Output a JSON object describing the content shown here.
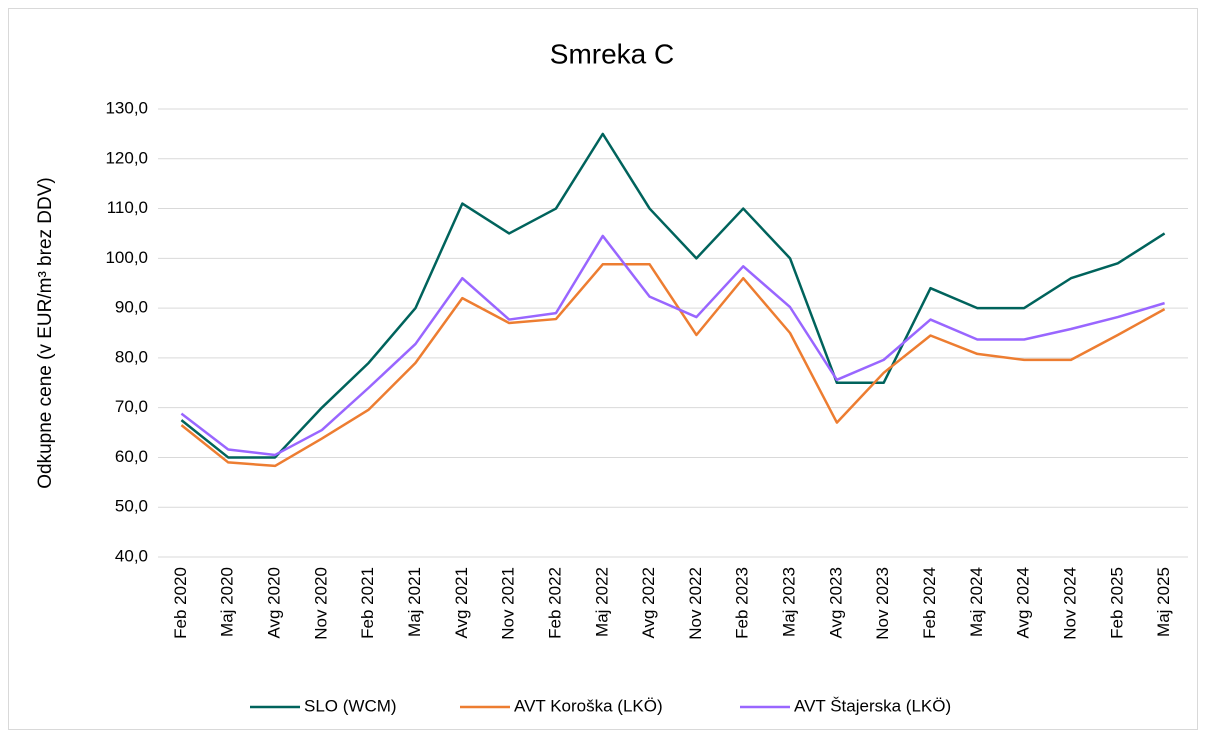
{
  "chart_data": {
    "type": "line",
    "title": "Smreka C",
    "y_label": "Odkupne cene (v EUR/m³ brez DDV)",
    "categories": [
      "Feb 2020",
      "Maj 2020",
      "Avg 2020",
      "Nov 2020",
      "Feb 2021",
      "Maj 2021",
      "Avg 2021",
      "Nov 2021",
      "Feb 2022",
      "Maj 2022",
      "Avg 2022",
      "Nov 2022",
      "Feb 2023",
      "Maj 2023",
      "Avg 2023",
      "Nov 2023",
      "Feb 2024",
      "Maj 2024",
      "Avg 2024",
      "Nov 2024",
      "Feb 2025",
      "Maj 2025"
    ],
    "series": [
      {
        "name": "SLO (WCM)",
        "color": "#00635c",
        "values": [
          67.5,
          60,
          60,
          70,
          79,
          90,
          111,
          105,
          110,
          125,
          110,
          100,
          110,
          100,
          75,
          75,
          94,
          90,
          90,
          96,
          99,
          105
        ]
      },
      {
        "name": "AVT Koroška (LKÖ)",
        "color": "#ed7d31",
        "values": [
          66.5,
          59,
          58.3,
          63.8,
          69.6,
          79,
          92,
          87,
          87.8,
          98.8,
          98.8,
          84.6,
          96,
          85,
          67,
          77,
          84.5,
          80.8,
          79.6,
          79.6,
          84.6,
          89.8
        ]
      },
      {
        "name": "AVT Štajerska (LKÖ)",
        "color": "#9966ff",
        "values": [
          68.8,
          61.6,
          60.5,
          65.5,
          74,
          82.8,
          96,
          87.7,
          89,
          104.5,
          92.3,
          88.2,
          98.4,
          90.2,
          75.6,
          79.6,
          87.7,
          83.7,
          83.7,
          85.8,
          88.2,
          91
        ]
      }
    ],
    "ylim": [
      40,
      130
    ],
    "yticks": [
      {
        "value": 40,
        "label": "40,0"
      },
      {
        "value": 50,
        "label": "50,0"
      },
      {
        "value": 60,
        "label": "60,0"
      },
      {
        "value": 70,
        "label": "70,0"
      },
      {
        "value": 80,
        "label": "80,0"
      },
      {
        "value": 90,
        "label": "90,0"
      },
      {
        "value": 100,
        "label": "100,0"
      },
      {
        "value": 110,
        "label": "110,0"
      },
      {
        "value": 120,
        "label": "120,0"
      },
      {
        "value": 130,
        "label": "130,0"
      }
    ],
    "grid": true,
    "legend": "bottom"
  }
}
